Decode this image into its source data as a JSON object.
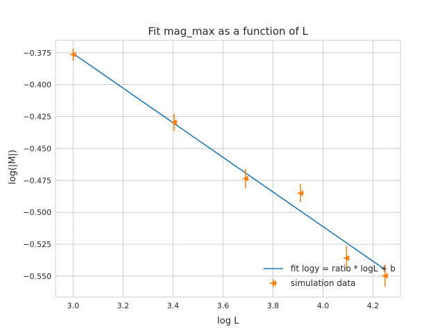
{
  "chart_data": {
    "type": "scatter",
    "title": "Fit mag_max as a function of L",
    "xlabel": "log L",
    "ylabel": "log(|M|)",
    "xlim": [
      2.93,
      4.31
    ],
    "ylim": [
      -0.5664,
      -0.3653
    ],
    "xticks": [
      3.0,
      3.2,
      3.4,
      3.6,
      3.8,
      4.0,
      4.2
    ],
    "xtick_labels": [
      "3.0",
      "3.2",
      "3.4",
      "3.6",
      "3.8",
      "4.0",
      "4.2"
    ],
    "yticks": [
      -0.375,
      -0.4,
      -0.425,
      -0.45,
      -0.475,
      -0.5,
      -0.525,
      -0.55
    ],
    "ytick_labels": [
      "−0.375",
      "−0.400",
      "−0.425",
      "−0.450",
      "−0.475",
      "−0.500",
      "−0.525",
      "−0.550"
    ],
    "grid": true,
    "legend_position": "lower-right",
    "series": [
      {
        "name": "fit logy = ratio * logL + b",
        "kind": "line",
        "color": "#1f77b4",
        "x": [
          3.0,
          4.25
        ],
        "y": [
          -0.3756,
          -0.5451
        ]
      },
      {
        "name": "simulation data",
        "kind": "errorbar",
        "marker": "triangle-left",
        "color": "#ff7f0e",
        "x": [
          3.0,
          3.404,
          3.69,
          3.91,
          4.094,
          4.248
        ],
        "y": [
          -0.3764,
          -0.4295,
          -0.4736,
          -0.485,
          -0.5358,
          -0.5497
        ],
        "yerr": [
          0.0048,
          0.0068,
          0.0075,
          0.0072,
          0.0093,
          0.0087
        ],
        "xerr": [
          0.012,
          0.012,
          0.012,
          0.012,
          0.012,
          0.012
        ]
      }
    ]
  }
}
